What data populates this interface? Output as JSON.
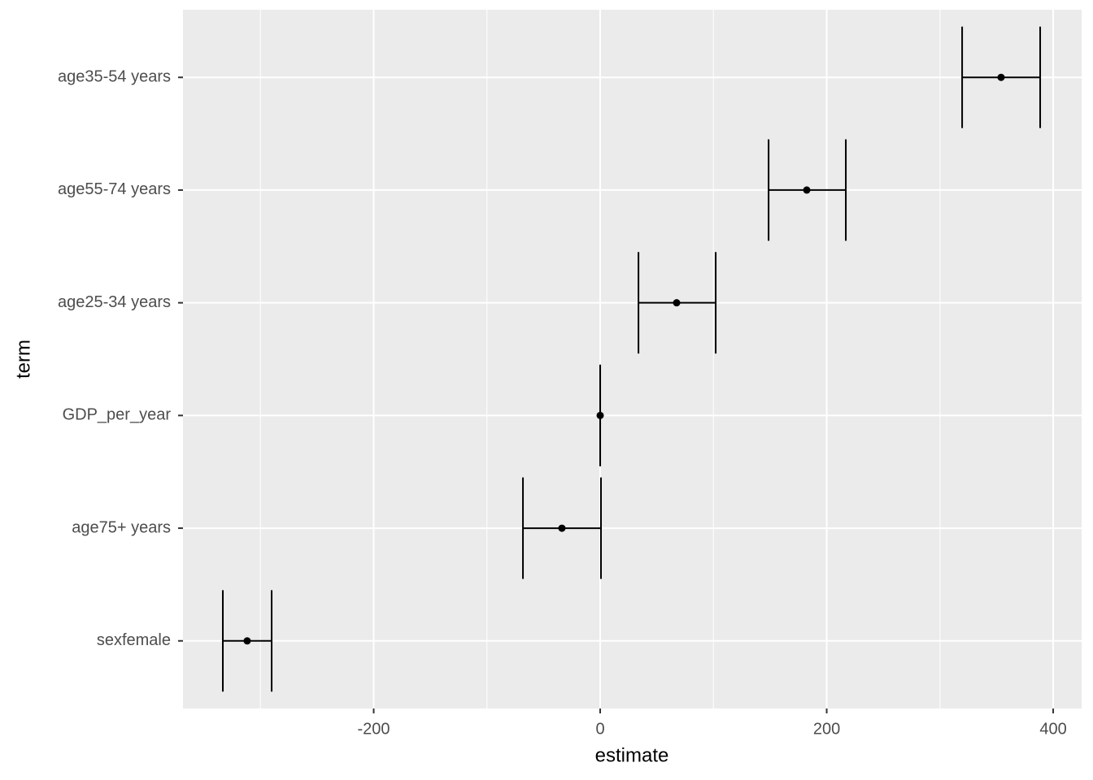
{
  "chart_data": {
    "type": "errorbar",
    "x_label": "estimate",
    "y_label": "term",
    "categories": [
      "sexfemale",
      "age75+ years",
      "GDP_per_year",
      "age25-34 years",
      "age55-74 years",
      "age35-54 years"
    ],
    "values": [
      -311.7,
      -33.8,
      0,
      67.5,
      182.4,
      354
    ],
    "lower": [
      -333.2,
      -68.2,
      0,
      33.8,
      148.7,
      319.6
    ],
    "upper": [
      -290.1,
      0.7,
      0,
      102,
      216.9,
      388.5
    ],
    "color": "#000000",
    "xlim": [
      -368.4,
      425.1
    ],
    "xticks": [
      -200,
      0,
      200,
      400
    ],
    "grid": true
  }
}
